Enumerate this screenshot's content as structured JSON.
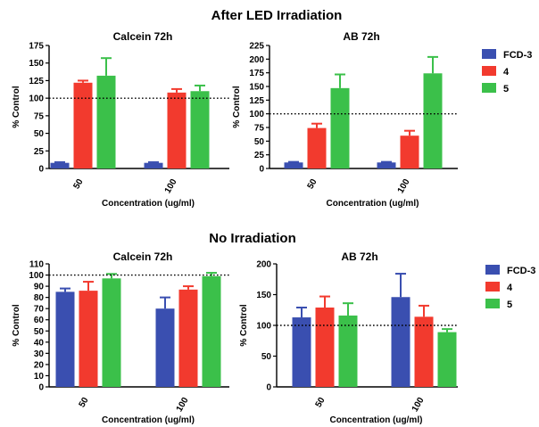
{
  "figure": {
    "heading_top": "After LED Irradiation",
    "heading_bottom": "No Irradiation",
    "colors": {
      "FCD-3": "#3a4fb0",
      "4": "#f23a2e",
      "5": "#3bc04a"
    },
    "reference_line": 100
  },
  "chart_data": [
    {
      "type": "bar",
      "title": "Calcein 72h",
      "xlabel": "Concentration (ug/ml)",
      "ylabel": "% Control",
      "categories": [
        "50",
        "100"
      ],
      "ylim": [
        0,
        175
      ],
      "yticks": [
        0,
        25,
        50,
        75,
        100,
        125,
        150,
        175
      ],
      "series": [
        {
          "name": "FCD-3",
          "values": [
            8,
            8
          ],
          "errors": [
            1,
            1
          ]
        },
        {
          "name": "4",
          "values": [
            122,
            108
          ],
          "errors": [
            3,
            5
          ]
        },
        {
          "name": "5",
          "values": [
            132,
            110
          ],
          "errors": [
            25,
            8
          ]
        }
      ],
      "legend": "none"
    },
    {
      "type": "bar",
      "title": "AB 72h",
      "xlabel": "Concentration (ug/ml)",
      "ylabel": "% Control",
      "categories": [
        "50",
        "100"
      ],
      "ylim": [
        0,
        225
      ],
      "yticks": [
        0,
        25,
        50,
        75,
        100,
        125,
        150,
        175,
        200,
        225
      ],
      "series": [
        {
          "name": "FCD-3",
          "values": [
            11,
            11
          ],
          "errors": [
            1,
            1
          ]
        },
        {
          "name": "4",
          "values": [
            74,
            60
          ],
          "errors": [
            8,
            9
          ]
        },
        {
          "name": "5",
          "values": [
            147,
            174
          ],
          "errors": [
            25,
            30
          ]
        }
      ],
      "legend": "right"
    },
    {
      "type": "bar",
      "title": "Calcein 72h",
      "xlabel": "Concentration (ug/ml)",
      "ylabel": "% Control",
      "categories": [
        "50",
        "100"
      ],
      "ylim": [
        0,
        110
      ],
      "yticks": [
        0,
        10,
        20,
        30,
        40,
        50,
        60,
        70,
        80,
        90,
        100,
        110
      ],
      "series": [
        {
          "name": "FCD-3",
          "values": [
            85,
            70
          ],
          "errors": [
            3,
            10
          ]
        },
        {
          "name": "4",
          "values": [
            86,
            87
          ],
          "errors": [
            8,
            3
          ]
        },
        {
          "name": "5",
          "values": [
            97,
            99
          ],
          "errors": [
            4,
            3
          ]
        }
      ],
      "legend": "none"
    },
    {
      "type": "bar",
      "title": "AB 72h",
      "xlabel": "Concentration (ug/ml)",
      "ylabel": "% Control",
      "categories": [
        "50",
        "100"
      ],
      "ylim": [
        0,
        200
      ],
      "yticks": [
        0,
        50,
        100,
        150,
        200
      ],
      "series": [
        {
          "name": "FCD-3",
          "values": [
            113,
            146
          ],
          "errors": [
            16,
            38
          ]
        },
        {
          "name": "4",
          "values": [
            129,
            114
          ],
          "errors": [
            18,
            18
          ]
        },
        {
          "name": "5",
          "values": [
            116,
            89
          ],
          "errors": [
            20,
            5
          ]
        }
      ],
      "legend": "right"
    }
  ]
}
